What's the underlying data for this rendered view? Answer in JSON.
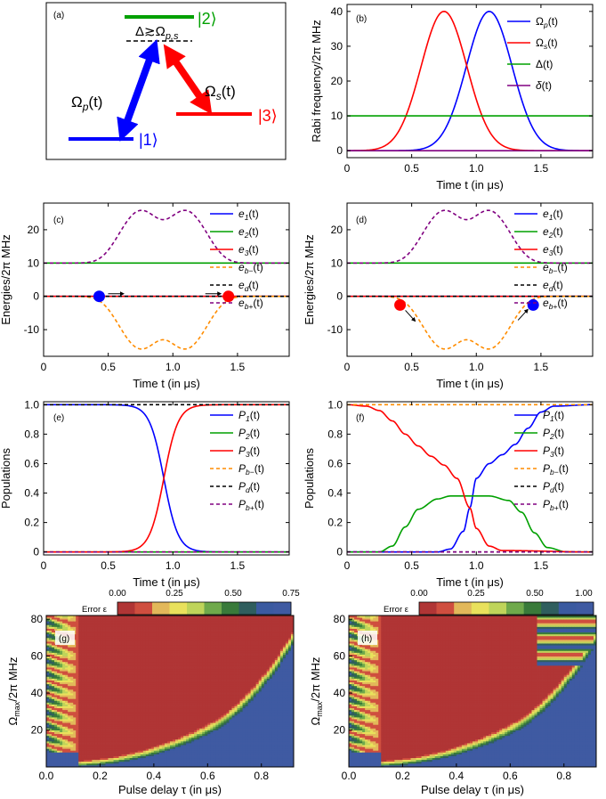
{
  "level_diagram": {
    "panel_label": "(a)",
    "detuning_label": "Δ≳Ω",
    "detuning_sub": "p,s",
    "pump_label": "Ω",
    "pump_sub": "p",
    "pump_arg": "(t)",
    "stokes_label": "Ω",
    "stokes_sub": "s",
    "stokes_arg": "(t)",
    "state1": "|1⟩",
    "state2": "|2⟩",
    "state3": "|3⟩",
    "colors": {
      "state1": "#0000ff",
      "state2": "#00a000",
      "state3": "#ff0000"
    }
  },
  "colorbar": {
    "label": "Error ε",
    "ticks": [
      "0.00",
      "0.25",
      "0.50",
      "0.75",
      "1.00"
    ],
    "stops": [
      "#b03535",
      "#cf4e3f",
      "#e2b85a",
      "#e9e15c",
      "#bfd45a",
      "#6fa94b",
      "#397a3a",
      "#2f5e5e",
      "#3b5aa0",
      "#3f5aa2"
    ]
  },
  "chart_data": [
    {
      "panel": "(b)",
      "type": "line",
      "xlabel": "Time t (in μs)",
      "ylabel": "Rabi frequency/2π MHz",
      "xlim": [
        0,
        1.9
      ],
      "ylim": [
        -2,
        42
      ],
      "xticks": [
        "0",
        "0.5",
        "1.0",
        "1.5"
      ],
      "yticks": [
        "0",
        "10",
        "20",
        "30",
        "40"
      ],
      "series": [
        {
          "name": "Ω",
          "sub": "p",
          "arg": "(t)",
          "color": "#0000ff",
          "style": "solid",
          "shape": "gauss",
          "center": 1.1,
          "width": 0.25,
          "amp": 40,
          "offset": 0
        },
        {
          "name": "Ω",
          "sub": "s",
          "arg": "(t)",
          "color": "#ff0000",
          "style": "solid",
          "shape": "gauss",
          "center": 0.75,
          "width": 0.25,
          "amp": 40,
          "offset": 0
        },
        {
          "name": "Δ",
          "sub": "",
          "arg": "(t)",
          "color": "#00a000",
          "style": "solid",
          "shape": "const",
          "offset": 10
        },
        {
          "name": "δ",
          "sub": "",
          "arg": "(t)",
          "color": "#800080",
          "style": "solid",
          "shape": "const",
          "offset": 0
        }
      ]
    },
    {
      "panel": "(c)",
      "type": "line",
      "xlabel": "Time t (in μs)",
      "ylabel": "Energies/2π MHz",
      "xlim": [
        0,
        1.9
      ],
      "ylim": [
        -18,
        28
      ],
      "xticks": [
        "0",
        "0.5",
        "1.0",
        "1.5"
      ],
      "yticks": [
        "-10",
        "0",
        "10",
        "20"
      ],
      "series": [
        {
          "name": "e",
          "sub": "1",
          "arg": "(t)",
          "color": "#0000ff",
          "style": "solid",
          "shape": "const",
          "offset": 0
        },
        {
          "name": "e",
          "sub": "2",
          "arg": "(t)",
          "color": "#00a000",
          "style": "solid",
          "shape": "const",
          "offset": 10
        },
        {
          "name": "e",
          "sub": "3",
          "arg": "(t)",
          "color": "#ff0000",
          "style": "solid",
          "shape": "const",
          "offset": 0
        },
        {
          "name": "e",
          "sub": "b−",
          "arg": "(t)",
          "color": "#ff8c00",
          "style": "dashed",
          "shape": "double",
          "sign": -1
        },
        {
          "name": "e",
          "sub": "d",
          "arg": "(t)",
          "color": "#000000",
          "style": "dashed",
          "shape": "const",
          "offset": 0
        },
        {
          "name": "e",
          "sub": "b+",
          "arg": "(t)",
          "color": "#800080",
          "style": "dashed",
          "shape": "double",
          "sign": 1
        }
      ],
      "markers": [
        {
          "t": 0.43,
          "e": 0,
          "color": "#0000ff"
        },
        {
          "t": 1.43,
          "e": 0,
          "color": "#ff0000"
        }
      ]
    },
    {
      "panel": "(d)",
      "type": "line",
      "xlabel": "Time t (in μs)",
      "ylabel": "Energies/2π MHz",
      "xlim": [
        0,
        1.9
      ],
      "ylim": [
        -18,
        28
      ],
      "xticks": [
        "0",
        "0.5",
        "1.0",
        "1.5"
      ],
      "yticks": [
        "-10",
        "0",
        "10",
        "20"
      ],
      "series": [
        {
          "name": "e",
          "sub": "1",
          "arg": "(t)",
          "color": "#0000ff",
          "style": "solid",
          "shape": "const",
          "offset": 0
        },
        {
          "name": "e",
          "sub": "2",
          "arg": "(t)",
          "color": "#00a000",
          "style": "solid",
          "shape": "const",
          "offset": 10
        },
        {
          "name": "e",
          "sub": "3",
          "arg": "(t)",
          "color": "#ff0000",
          "style": "solid",
          "shape": "const",
          "offset": 0
        },
        {
          "name": "e",
          "sub": "b−",
          "arg": "(t)",
          "color": "#ff8c00",
          "style": "dashed",
          "shape": "double",
          "sign": -1
        },
        {
          "name": "e",
          "sub": "d",
          "arg": "(t)",
          "color": "#000000",
          "style": "dashed",
          "shape": "const",
          "offset": 0
        },
        {
          "name": "e",
          "sub": "b+",
          "arg": "(t)",
          "color": "#800080",
          "style": "dashed",
          "shape": "double",
          "sign": 1
        }
      ],
      "markers": [
        {
          "t": 0.41,
          "e": -2.6,
          "color": "#ff0000"
        },
        {
          "t": 1.44,
          "e": -2.6,
          "color": "#0000ff"
        }
      ]
    },
    {
      "panel": "(e)",
      "type": "line",
      "xlabel": "Time t (in μs)",
      "ylabel": "Populations",
      "xlim": [
        0,
        1.9
      ],
      "ylim": [
        -0.02,
        1.02
      ],
      "xticks": [
        "0",
        "0.5",
        "1.0",
        "1.5"
      ],
      "yticks": [
        "0",
        "0.2",
        "0.4",
        "0.6",
        "0.8",
        "1.0"
      ],
      "series": [
        {
          "name": "P",
          "sub": "1",
          "arg": "(t)",
          "color": "#0000ff",
          "style": "solid",
          "shape": "sigmoid",
          "center": 0.93,
          "k": 18,
          "dir": -1
        },
        {
          "name": "P",
          "sub": "2",
          "arg": "(t)",
          "color": "#00a000",
          "style": "solid",
          "shape": "const",
          "offset": 0
        },
        {
          "name": "P",
          "sub": "3",
          "arg": "(t)",
          "color": "#ff0000",
          "style": "solid",
          "shape": "sigmoid",
          "center": 0.93,
          "k": 18,
          "dir": 1
        },
        {
          "name": "P",
          "sub": "b−",
          "arg": "(t)",
          "color": "#ff8c00",
          "style": "dashed",
          "shape": "const",
          "offset": 0
        },
        {
          "name": "P",
          "sub": "d",
          "arg": "(t)",
          "color": "#000000",
          "style": "dashed",
          "shape": "const",
          "offset": 1
        },
        {
          "name": "P",
          "sub": "b+",
          "arg": "(t)",
          "color": "#800080",
          "style": "dashed",
          "shape": "const",
          "offset": 0
        }
      ]
    },
    {
      "panel": "(f)",
      "type": "line",
      "xlabel": "Time t (in μs)",
      "ylabel": "Populations",
      "xlim": [
        0,
        1.9
      ],
      "ylim": [
        -0.02,
        1.02
      ],
      "xticks": [
        "0",
        "0.5",
        "1.0",
        "1.5"
      ],
      "yticks": [
        "0",
        "0.2",
        "0.4",
        "0.6",
        "0.8",
        "1.0"
      ],
      "series": [
        {
          "name": "P",
          "sub": "1",
          "arg": "(t)",
          "color": "#0000ff",
          "style": "solid",
          "shape": "pts",
          "points": [
            [
              0,
              0
            ],
            [
              0.7,
              0
            ],
            [
              0.8,
              0.02
            ],
            [
              0.9,
              0.14
            ],
            [
              0.95,
              0.3
            ],
            [
              1.0,
              0.5
            ],
            [
              1.1,
              0.6
            ],
            [
              1.2,
              0.66
            ],
            [
              1.3,
              0.73
            ],
            [
              1.4,
              0.84
            ],
            [
              1.5,
              0.95
            ],
            [
              1.6,
              0.99
            ],
            [
              1.9,
              1.0
            ]
          ]
        },
        {
          "name": "P",
          "sub": "2",
          "arg": "(t)",
          "color": "#00a000",
          "style": "solid",
          "shape": "pts",
          "points": [
            [
              0,
              0
            ],
            [
              0.25,
              0
            ],
            [
              0.35,
              0.04
            ],
            [
              0.45,
              0.17
            ],
            [
              0.55,
              0.29
            ],
            [
              0.7,
              0.36
            ],
            [
              0.8,
              0.38
            ],
            [
              0.95,
              0.38
            ],
            [
              1.1,
              0.38
            ],
            [
              1.25,
              0.35
            ],
            [
              1.35,
              0.27
            ],
            [
              1.45,
              0.13
            ],
            [
              1.55,
              0.03
            ],
            [
              1.7,
              0
            ],
            [
              1.9,
              0
            ]
          ]
        },
        {
          "name": "P",
          "sub": "3",
          "arg": "(t)",
          "color": "#ff0000",
          "style": "solid",
          "shape": "pts",
          "points": [
            [
              0,
              1.0
            ],
            [
              0.15,
              0.99
            ],
            [
              0.25,
              0.96
            ],
            [
              0.35,
              0.89
            ],
            [
              0.45,
              0.8
            ],
            [
              0.55,
              0.72
            ],
            [
              0.65,
              0.65
            ],
            [
              0.75,
              0.59
            ],
            [
              0.85,
              0.5
            ],
            [
              0.95,
              0.3
            ],
            [
              1.0,
              0.16
            ],
            [
              1.1,
              0.04
            ],
            [
              1.2,
              0.01
            ],
            [
              1.9,
              0
            ]
          ]
        },
        {
          "name": "P",
          "sub": "b−",
          "arg": "(t)",
          "color": "#ff8c00",
          "style": "dashed",
          "shape": "const",
          "offset": 1
        },
        {
          "name": "P",
          "sub": "d",
          "arg": "(t)",
          "color": "#000000",
          "style": "dashed",
          "shape": "const",
          "offset": 0
        },
        {
          "name": "P",
          "sub": "b+",
          "arg": "(t)",
          "color": "#800080",
          "style": "dashed",
          "shape": "const",
          "offset": 0
        }
      ]
    },
    {
      "panel": "(g)",
      "type": "heatmap",
      "xlabel": "Pulse delay τ (in μs)",
      "ylabel": "Ω",
      "ylabel_sub": "max",
      "ylabel_rest": "/2π MHz",
      "xlim": [
        0,
        0.92
      ],
      "ylim": [
        0,
        82
      ],
      "xticks": [
        "0.0",
        "0.2",
        "0.4",
        "0.6",
        "0.8"
      ],
      "yticks": [
        "20",
        "40",
        "60",
        "80"
      ]
    },
    {
      "panel": "(h)",
      "type": "heatmap",
      "xlabel": "Pulse delay τ (in μs)",
      "ylabel": "Ω",
      "ylabel_sub": "max",
      "ylabel_rest": "/2π MHz",
      "xlim": [
        0,
        0.92
      ],
      "ylim": [
        0,
        82
      ],
      "xticks": [
        "0.0",
        "0.2",
        "0.4",
        "0.6",
        "0.8"
      ],
      "yticks": [
        "20",
        "40",
        "60",
        "80"
      ]
    }
  ]
}
